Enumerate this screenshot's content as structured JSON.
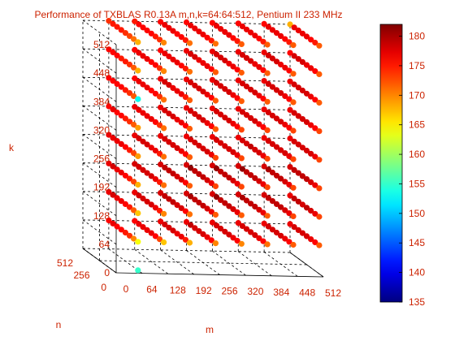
{
  "chart_data": {
    "type": "scatter",
    "title": "Performance of TXBLAS R0.13A m,n,k=64:64:512, Pentium II 233 MHz",
    "xlabel": "m",
    "ylabel": "n",
    "zlabel": "k",
    "m_ticks": [
      "0",
      "64",
      "128",
      "192",
      "256",
      "320",
      "384",
      "448",
      "512"
    ],
    "n_ticks": [
      "0",
      "256",
      "512"
    ],
    "k_ticks": [
      "0",
      "64",
      "128",
      "192",
      "256",
      "320",
      "384",
      "448",
      "512"
    ],
    "m_values": [
      64,
      128,
      192,
      256,
      320,
      384,
      448,
      512
    ],
    "n_values": [
      64,
      128,
      192,
      256,
      320,
      384,
      448,
      512
    ],
    "k_values": [
      64,
      128,
      192,
      256,
      320,
      384,
      448,
      512
    ],
    "mlim": [
      0,
      512
    ],
    "nlim": [
      0,
      512
    ],
    "klim": [
      0,
      512
    ],
    "colorbar": {
      "ticks": [
        "135",
        "140",
        "145",
        "150",
        "155",
        "160",
        "165",
        "170",
        "175",
        "180"
      ],
      "range": [
        135,
        182
      ]
    },
    "performance_mflops": {
      "64": [
        [
          164,
          167,
          168,
          170,
          170,
          171,
          172,
          172
        ],
        [
          170,
          173,
          175,
          176,
          176,
          176,
          176,
          176
        ],
        [
          174,
          176,
          177,
          177,
          177,
          177,
          177,
          177
        ],
        [
          175,
          177,
          177,
          178,
          178,
          178,
          178,
          178
        ],
        [
          176,
          177,
          178,
          178,
          178,
          178,
          178,
          178
        ],
        [
          176,
          177,
          178,
          178,
          178,
          178,
          178,
          178
        ],
        [
          177,
          177,
          178,
          179,
          178,
          178,
          178,
          178
        ],
        [
          176,
          176,
          177,
          177,
          177,
          177,
          177,
          177
        ]
      ],
      "128": [
        [
          167,
          170,
          171,
          172,
          172,
          172,
          173,
          173
        ],
        [
          172,
          175,
          176,
          177,
          177,
          177,
          177,
          177
        ],
        [
          175,
          177,
          178,
          178,
          178,
          178,
          178,
          178
        ],
        [
          176,
          178,
          178,
          179,
          179,
          179,
          179,
          179
        ],
        [
          177,
          178,
          179,
          179,
          179,
          179,
          179,
          178
        ],
        [
          177,
          178,
          179,
          179,
          179,
          179,
          179,
          179
        ],
        [
          178,
          178,
          179,
          180,
          181,
          180,
          179,
          179
        ],
        [
          177,
          177,
          178,
          178,
          178,
          178,
          178,
          177
        ]
      ],
      "192": [
        [
          168,
          171,
          172,
          173,
          173,
          173,
          173,
          173
        ],
        [
          173,
          175,
          176,
          177,
          177,
          177,
          177,
          177
        ],
        [
          175,
          177,
          178,
          178,
          178,
          178,
          178,
          178
        ],
        [
          176,
          178,
          178,
          179,
          179,
          179,
          179,
          179
        ],
        [
          177,
          178,
          179,
          179,
          179,
          179,
          179,
          179
        ],
        [
          177,
          178,
          179,
          179,
          179,
          179,
          179,
          179
        ],
        [
          178,
          178,
          179,
          181,
          181,
          181,
          180,
          179
        ],
        [
          177,
          178,
          178,
          178,
          178,
          178,
          178,
          178
        ]
      ],
      "256": [
        [
          169,
          171,
          172,
          173,
          173,
          173,
          173,
          173
        ],
        [
          173,
          175,
          176,
          177,
          177,
          177,
          177,
          177
        ],
        [
          175,
          177,
          177,
          178,
          178,
          178,
          178,
          178
        ],
        [
          176,
          177,
          178,
          178,
          178,
          178,
          178,
          178
        ],
        [
          177,
          178,
          178,
          178,
          178,
          179,
          178,
          178
        ],
        [
          177,
          178,
          178,
          178,
          178,
          178,
          178,
          178
        ],
        [
          177,
          178,
          178,
          178,
          178,
          178,
          178,
          178
        ],
        [
          177,
          177,
          177,
          177,
          177,
          177,
          177,
          177
        ]
      ],
      "320": [
        [
          169,
          171,
          172,
          172,
          173,
          173,
          173,
          173
        ],
        [
          172,
          174,
          176,
          176,
          176,
          176,
          176,
          176
        ],
        [
          174,
          176,
          177,
          177,
          177,
          177,
          177,
          177
        ],
        [
          175,
          177,
          177,
          178,
          178,
          178,
          178,
          178
        ],
        [
          176,
          177,
          178,
          178,
          178,
          178,
          178,
          178
        ],
        [
          176,
          177,
          178,
          178,
          178,
          178,
          178,
          178
        ],
        [
          177,
          177,
          178,
          178,
          178,
          178,
          178,
          178
        ],
        [
          176,
          177,
          177,
          177,
          177,
          177,
          177,
          177
        ]
      ],
      "384": [
        [
          168,
          171,
          172,
          172,
          172,
          172,
          172,
          172
        ],
        [
          172,
          174,
          175,
          176,
          176,
          176,
          176,
          176
        ],
        [
          174,
          176,
          177,
          177,
          177,
          177,
          177,
          177
        ],
        [
          175,
          176,
          177,
          178,
          178,
          178,
          178,
          178
        ],
        [
          176,
          177,
          177,
          178,
          178,
          178,
          178,
          178
        ],
        [
          176,
          177,
          178,
          178,
          178,
          178,
          178,
          178
        ],
        [
          176,
          177,
          178,
          178,
          178,
          178,
          178,
          178
        ],
        [
          176,
          176,
          177,
          177,
          177,
          177,
          177,
          177
        ]
      ],
      "448": [
        [
          168,
          170,
          171,
          172,
          172,
          172,
          172,
          172
        ],
        [
          172,
          174,
          175,
          176,
          176,
          176,
          176,
          176
        ],
        [
          174,
          176,
          176,
          177,
          177,
          177,
          177,
          177
        ],
        [
          175,
          176,
          177,
          177,
          177,
          177,
          177,
          177
        ],
        [
          175,
          177,
          177,
          177,
          178,
          178,
          178,
          178
        ],
        [
          176,
          177,
          177,
          178,
          178,
          178,
          178,
          178
        ],
        [
          176,
          177,
          177,
          178,
          178,
          178,
          178,
          178
        ],
        [
          176,
          176,
          176,
          177,
          177,
          177,
          177,
          176
        ]
      ],
      "512": [
        [
          168,
          170,
          171,
          171,
          172,
          172,
          172,
          172
        ],
        [
          171,
          174,
          175,
          175,
          175,
          175,
          175,
          175
        ],
        [
          173,
          175,
          176,
          176,
          176,
          176,
          176,
          176
        ],
        [
          174,
          176,
          176,
          177,
          177,
          177,
          177,
          177
        ],
        [
          175,
          176,
          177,
          177,
          177,
          177,
          177,
          177
        ],
        [
          175,
          176,
          177,
          177,
          177,
          177,
          177,
          177
        ],
        [
          175,
          176,
          177,
          177,
          177,
          177,
          177,
          177
        ],
        [
          174,
          175,
          176,
          176,
          176,
          176,
          176,
          168
        ]
      ]
    },
    "outliers": [
      {
        "m": 64,
        "n": 64,
        "k": 384,
        "value": 153
      },
      {
        "m": 64,
        "n": 64,
        "k": 0,
        "value": 155
      }
    ]
  }
}
